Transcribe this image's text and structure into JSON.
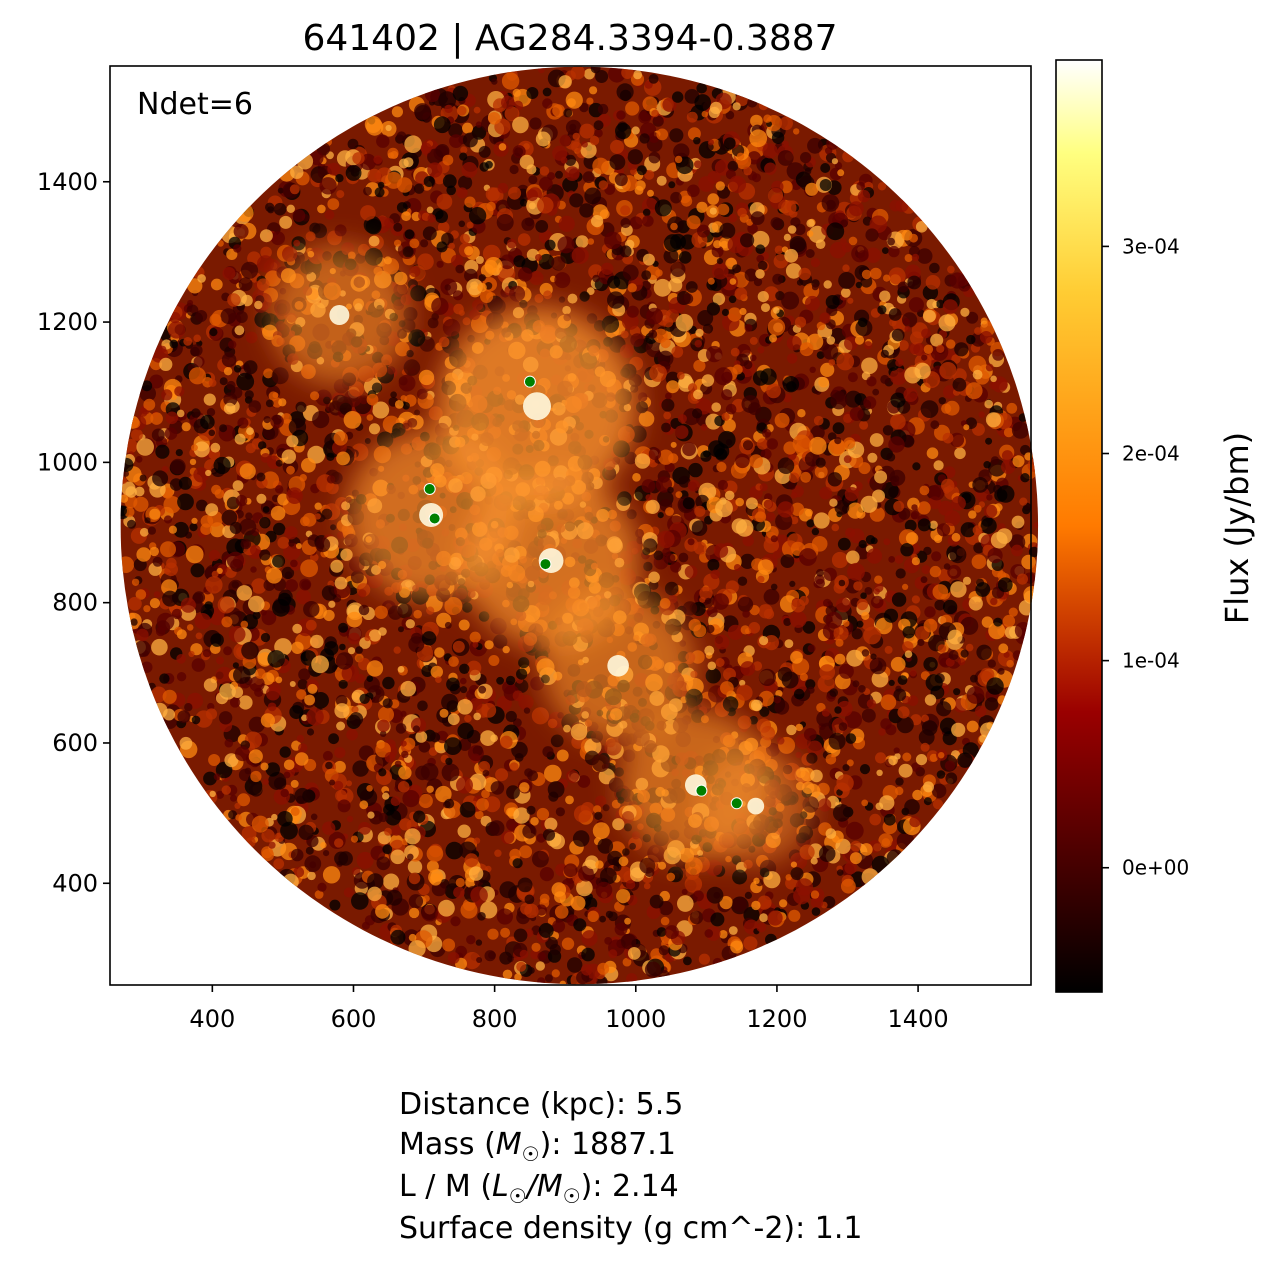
{
  "chart_data": {
    "type": "heatmap",
    "title": "641402 | AG284.3394-0.3887",
    "annotation": "Ndet=6",
    "xlabel": "",
    "ylabel": "",
    "xlim": [
      255,
      1560
    ],
    "ylim": [
      255,
      1565
    ],
    "x_ticks": [
      400,
      600,
      800,
      1000,
      1200,
      1400
    ],
    "y_ticks": [
      400,
      600,
      800,
      1000,
      1200,
      1400
    ],
    "x_tick_labels": [
      "400",
      "600",
      "800",
      "1000",
      "1200",
      "1400"
    ],
    "y_tick_labels": [
      "400",
      "600",
      "800",
      "1000",
      "1200",
      "1400"
    ],
    "image_footprint": {
      "shape": "circle",
      "center": [
        920,
        910
      ],
      "radius": 650
    },
    "colormap": "afmhot",
    "colorbar": {
      "label": "Flux (Jy/bm)",
      "range": [
        -6e-05,
        0.00039
      ],
      "ticks": [
        0,
        0.0001,
        0.0002,
        0.0003
      ],
      "tick_labels": [
        "0e+00",
        "1e-04",
        "2e-04",
        "3e-04"
      ]
    },
    "emission_features": [
      {
        "x": 860,
        "y": 1080,
        "strength": 1.0
      },
      {
        "x": 580,
        "y": 1210,
        "strength": 0.5
      },
      {
        "x": 710,
        "y": 925,
        "strength": 0.75
      },
      {
        "x": 880,
        "y": 860,
        "strength": 0.8
      },
      {
        "x": 975,
        "y": 710,
        "strength": 0.6
      },
      {
        "x": 1085,
        "y": 540,
        "strength": 0.6
      },
      {
        "x": 1170,
        "y": 510,
        "strength": 0.3
      }
    ],
    "detections": {
      "name": "Ndet",
      "color": "#008000",
      "points": [
        {
          "x": 850,
          "y": 1115
        },
        {
          "x": 708,
          "y": 962
        },
        {
          "x": 715,
          "y": 920
        },
        {
          "x": 872,
          "y": 855
        },
        {
          "x": 1093,
          "y": 532
        },
        {
          "x": 1143,
          "y": 514
        }
      ]
    }
  },
  "stats": {
    "distance": "Distance (kpc): 5.5",
    "mass_prefix": "Mass (",
    "mass_symbol": "M",
    "mass_sub": "☉",
    "mass_suffix": "): 1887.1",
    "lm_prefix": "L / M (",
    "lm_L": "L",
    "lm_L_sub": "☉",
    "lm_slash": "/",
    "lm_M": "M",
    "lm_M_sub": "☉",
    "lm_suffix": "): 2.14",
    "surface_density": "Surface density (g cm^-2): 1.1"
  }
}
